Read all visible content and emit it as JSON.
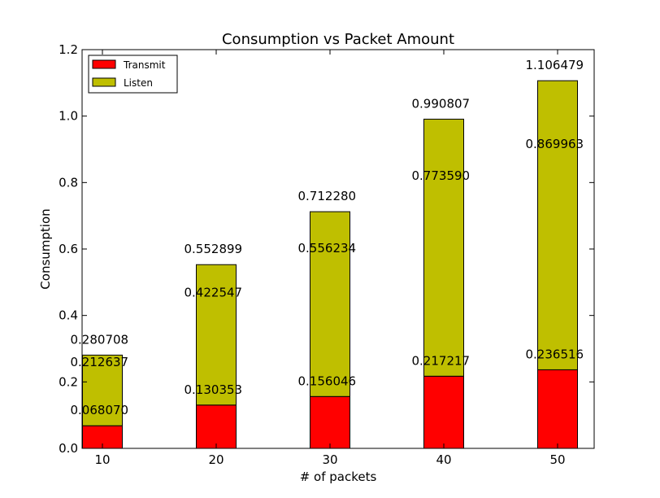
{
  "chart_data": {
    "type": "bar",
    "stacked": true,
    "title": "Consumption vs Packet Amount",
    "xlabel": "# of packets",
    "ylabel": "Consumption",
    "categories": [
      "10",
      "20",
      "30",
      "40",
      "50"
    ],
    "ylim": [
      0,
      1.2
    ],
    "yticks": [
      "0.0",
      "0.2",
      "0.4",
      "0.6",
      "0.8",
      "1.0",
      "1.2"
    ],
    "ytick_values": [
      0,
      0.2,
      0.4,
      0.6,
      0.8,
      1.0,
      1.2
    ],
    "grid": false,
    "legend_position": "top-left",
    "series": [
      {
        "name": "Transmit",
        "color": "#ff0000",
        "values": [
          0.06807,
          0.130353,
          0.156046,
          0.217217,
          0.236516
        ]
      },
      {
        "name": "Listen",
        "color": "#bfbf00",
        "values": [
          0.212637,
          0.422547,
          0.556234,
          0.77359,
          0.869963
        ]
      }
    ],
    "transmit_labels": [
      "0.068070",
      "0.130353",
      "0.156046",
      "0.217217",
      "0.236516"
    ],
    "listen_labels": [
      "0.212637",
      "0.422547",
      "0.556234",
      "0.773590",
      "0.869963"
    ],
    "totals": [
      0.280708,
      0.552899,
      0.71228,
      0.990807,
      1.106479
    ],
    "total_labels": [
      "0.280708",
      "0.552899",
      "0.712280",
      "0.990807",
      "1.106479"
    ]
  }
}
